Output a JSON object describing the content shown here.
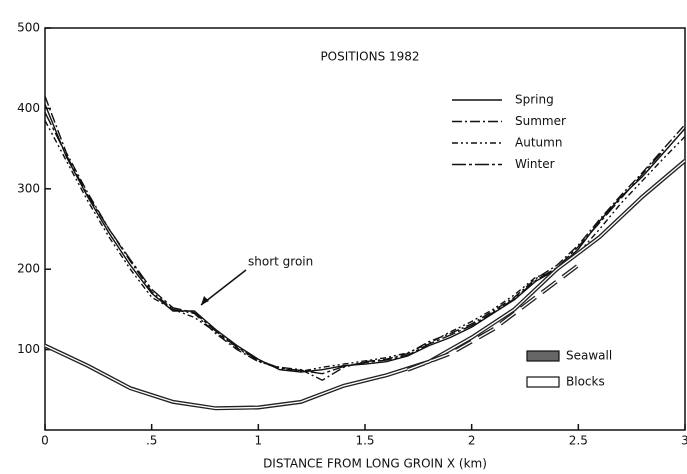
{
  "chart_data": {
    "type": "line",
    "title": "POSITIONS 1982",
    "x_label": "DISTANCE FROM LONG GROIN  X   (km)",
    "annotation": "short groin",
    "xlim": [
      0,
      3
    ],
    "ylim": [
      0,
      500
    ],
    "xticks": [
      0,
      {
        "value": 0.5,
        "label": ".5"
      },
      1,
      1.5,
      2,
      2.5,
      3
    ],
    "yticks": [
      100,
      200,
      300,
      400,
      500
    ],
    "series": [
      {
        "name": "Spring",
        "color": "#111111",
        "dash": "none",
        "x": [
          0,
          0.1,
          0.2,
          0.3,
          0.4,
          0.5,
          0.6,
          0.7,
          0.8,
          0.9,
          1,
          1.1,
          1.2,
          1.3,
          1.4,
          1.5,
          1.6,
          1.7,
          1.8,
          1.9,
          2,
          2.1,
          2.2,
          2.3,
          2.4,
          2.5,
          2.6,
          2.7,
          2.8,
          2.9,
          3
        ],
        "values": [
          405,
          340,
          290,
          245,
          205,
          170,
          148,
          148,
          125,
          105,
          88,
          75,
          72,
          75,
          80,
          82,
          85,
          92,
          105,
          115,
          128,
          145,
          162,
          185,
          200,
          225,
          260,
          290,
          315,
          345,
          375
        ]
      },
      {
        "name": "Summer",
        "color": "#111111",
        "dash": "10 3 2 3",
        "x": [
          0,
          0.1,
          0.2,
          0.3,
          0.4,
          0.5,
          0.6,
          0.7,
          0.8,
          0.9,
          1,
          1.1,
          1.2,
          1.3,
          1.4,
          1.5,
          1.6,
          1.7,
          1.8,
          1.9,
          2,
          2.1,
          2.2,
          2.3,
          2.4,
          2.5,
          2.6,
          2.7,
          2.8,
          2.9,
          3
        ],
        "values": [
          415,
          345,
          295,
          250,
          210,
          172,
          150,
          145,
          120,
          100,
          85,
          78,
          75,
          62,
          78,
          85,
          88,
          95,
          110,
          120,
          132,
          148,
          165,
          188,
          205,
          230,
          262,
          292,
          320,
          350,
          380
        ]
      },
      {
        "name": "Autumn",
        "color": "#111111",
        "dash": "6 3 2 3 2 3",
        "x": [
          0,
          0.1,
          0.2,
          0.3,
          0.4,
          0.5,
          0.6,
          0.7,
          0.8,
          0.9,
          1,
          1.1,
          1.2,
          1.3,
          1.4,
          1.5,
          1.6,
          1.7,
          1.8,
          1.9,
          2,
          2.1,
          2.2,
          2.3,
          2.4,
          2.5,
          2.6,
          2.7,
          2.8,
          2.9,
          3
        ],
        "values": [
          385,
          335,
          285,
          240,
          200,
          165,
          150,
          140,
          122,
          102,
          86,
          76,
          73,
          78,
          82,
          86,
          90,
          96,
          108,
          122,
          135,
          150,
          168,
          190,
          198,
          220,
          250,
          282,
          310,
          338,
          365
        ]
      },
      {
        "name": "Winter",
        "color": "#111111",
        "dash": "14 3 3 3",
        "x": [
          0,
          0.1,
          0.2,
          0.3,
          0.4,
          0.5,
          0.6,
          0.7,
          0.8,
          0.9,
          1,
          1.1,
          1.2,
          1.3,
          1.4,
          1.5,
          1.6,
          1.7,
          1.8,
          1.9,
          2,
          2.1,
          2.2,
          2.3,
          2.4,
          2.5,
          2.6,
          2.7,
          2.8,
          2.9
        ],
        "values": [
          395,
          342,
          292,
          250,
          212,
          175,
          152,
          146,
          123,
          103,
          87,
          77,
          74,
          70,
          79,
          84,
          87,
          93,
          107,
          118,
          130,
          146,
          163,
          186,
          202,
          228,
          258,
          288,
          318,
          348
        ]
      },
      {
        "name": "Seawall",
        "color": "#222222",
        "dash": "none",
        "width": 4,
        "x": [
          0,
          0.2,
          0.4,
          0.6,
          0.8,
          1,
          1.2,
          1.4,
          1.6,
          1.8,
          2,
          2.2,
          2.4,
          2.6,
          2.8,
          3
        ],
        "values": [
          105,
          80,
          52,
          35,
          27,
          28,
          35,
          55,
          68,
          85,
          115,
          150,
          200,
          240,
          290,
          335
        ]
      },
      {
        "name": "Blocks",
        "color": "#222222",
        "dash": "18 8",
        "width": 4,
        "x": [
          1.7,
          1.9,
          2.1,
          2.3,
          2.5
        ],
        "values": [
          75,
          95,
          125,
          165,
          205
        ]
      }
    ]
  }
}
